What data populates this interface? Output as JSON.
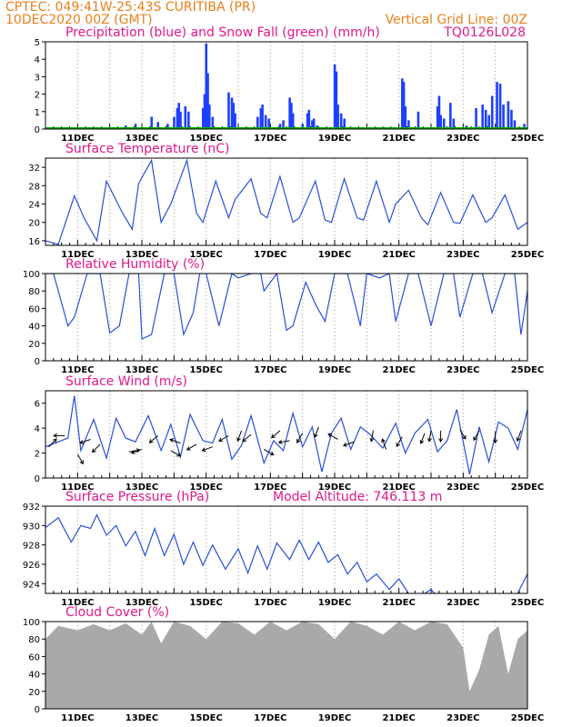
{
  "header": {
    "line1": "CPTEC:   049:41W-25:43S   CURITIBA (PR)",
    "line2": "10DEC2020 00Z (GMT)",
    "grid_note": "Vertical Grid Line: 00Z",
    "run_code": "TQ0126L028"
  },
  "colors": {
    "header": "#e8801c",
    "title": "#e0198c",
    "precip": "#1f3fff",
    "snow": "#00b000",
    "line": "#2b4fd8",
    "wind_arrow": "#000000",
    "cloud": "#a9a9a9"
  },
  "x_tick_labels": [
    "11DEC",
    "13DEC",
    "15DEC",
    "17DEC",
    "19DEC",
    "21DEC",
    "23DEC",
    "25DEC"
  ],
  "chart_data": [
    {
      "type": "bar",
      "title": "Precipitation (blue) and Snow Fall (green) (mm/h)",
      "x_start": "10DEC2020 00Z",
      "x_end": "25DEC2020 00Z",
      "ylim": [
        0,
        5
      ],
      "yticks": [
        0,
        1,
        2,
        3,
        4,
        5
      ],
      "series": [
        {
          "name": "Precipitation",
          "color": "#1f3fff",
          "points": [
            [
              0.2,
              0.1
            ],
            [
              0.5,
              0.1
            ],
            [
              1.7,
              0.1
            ],
            [
              2.5,
              0.2
            ],
            [
              2.8,
              0.3
            ],
            [
              3.3,
              0.7
            ],
            [
              3.5,
              0.4
            ],
            [
              3.8,
              0.3
            ],
            [
              4.0,
              0.7
            ],
            [
              4.1,
              1.2
            ],
            [
              4.15,
              1.5
            ],
            [
              4.2,
              1.0
            ],
            [
              4.35,
              1.3
            ],
            [
              4.45,
              1.0
            ],
            [
              4.9,
              1.2
            ],
            [
              4.95,
              2.0
            ],
            [
              5.0,
              4.9
            ],
            [
              5.05,
              3.2
            ],
            [
              5.1,
              1.4
            ],
            [
              5.2,
              0.7
            ],
            [
              5.7,
              2.1
            ],
            [
              5.8,
              1.8
            ],
            [
              5.85,
              1.5
            ],
            [
              5.9,
              0.9
            ],
            [
              6.6,
              0.7
            ],
            [
              6.7,
              1.2
            ],
            [
              6.75,
              1.4
            ],
            [
              6.85,
              0.8
            ],
            [
              6.95,
              0.6
            ],
            [
              7.3,
              0.3
            ],
            [
              7.4,
              0.5
            ],
            [
              7.6,
              1.8
            ],
            [
              7.65,
              1.5
            ],
            [
              7.7,
              0.9
            ],
            [
              8.0,
              0.3
            ],
            [
              8.15,
              0.9
            ],
            [
              8.2,
              1.1
            ],
            [
              8.3,
              0.5
            ],
            [
              8.35,
              0.6
            ],
            [
              8.45,
              0.2
            ],
            [
              9.0,
              3.7
            ],
            [
              9.05,
              3.3
            ],
            [
              9.1,
              1.4
            ],
            [
              9.2,
              0.9
            ],
            [
              9.3,
              0.6
            ],
            [
              11.1,
              2.9
            ],
            [
              11.15,
              2.7
            ],
            [
              11.2,
              1.3
            ],
            [
              11.3,
              0.5
            ],
            [
              11.6,
              1.0
            ],
            [
              12.2,
              1.3
            ],
            [
              12.25,
              1.9
            ],
            [
              12.3,
              0.8
            ],
            [
              12.4,
              0.6
            ],
            [
              12.6,
              1.5
            ],
            [
              12.7,
              0.6
            ],
            [
              13.1,
              0.2
            ],
            [
              13.4,
              1.2
            ],
            [
              13.6,
              1.4
            ],
            [
              13.7,
              1.1
            ],
            [
              13.8,
              0.8
            ],
            [
              13.9,
              1.9
            ],
            [
              14.05,
              2.7
            ],
            [
              14.15,
              2.6
            ],
            [
              14.25,
              1.4
            ],
            [
              14.4,
              1.6
            ],
            [
              14.5,
              1.1
            ],
            [
              14.6,
              0.5
            ],
            [
              14.9,
              0.3
            ],
            [
              15.6,
              1.5
            ],
            [
              15.65,
              2.3
            ],
            [
              15.7,
              1.8
            ],
            [
              15.8,
              1.2
            ],
            [
              15.9,
              0.5
            ],
            [
              16.2,
              3.3
            ],
            [
              16.3,
              1.2
            ],
            [
              16.4,
              0.8
            ],
            [
              16.6,
              0.3
            ],
            [
              16.9,
              1.2
            ],
            [
              17.0,
              1.0
            ],
            [
              17.15,
              0.5
            ],
            [
              17.3,
              0.7
            ],
            [
              17.4,
              1.1
            ],
            [
              17.5,
              1.5
            ],
            [
              17.6,
              0.9
            ],
            [
              17.8,
              0.3
            ],
            [
              17.95,
              0.9
            ],
            [
              18.0,
              1.0
            ]
          ]
        },
        {
          "name": "Snow Fall",
          "color": "#00b000",
          "points": [
            [
              0,
              0
            ],
            [
              15,
              0
            ]
          ]
        }
      ]
    },
    {
      "type": "line",
      "title": "Surface Temperature (nC)",
      "ylim": [
        15,
        34
      ],
      "yticks": [
        16,
        20,
        24,
        28,
        32
      ],
      "color": "#2b4fd8",
      "x": [
        0,
        0.4,
        0.9,
        1.2,
        1.6,
        1.9,
        2.4,
        2.7,
        2.9,
        3.3,
        3.6,
        3.9,
        4.4,
        4.7,
        4.9,
        5.3,
        5.7,
        5.9,
        6.4,
        6.7,
        6.9,
        7.3,
        7.7,
        7.9,
        8.4,
        8.7,
        8.9,
        9.3,
        9.7,
        9.9,
        10.3,
        10.7,
        10.9,
        11.3,
        11.7,
        11.9,
        12.3,
        12.7,
        12.9,
        13.3,
        13.7,
        13.9,
        14.3,
        14.7,
        15
      ],
      "y": [
        16,
        15.2,
        25.8,
        21,
        16,
        29,
        22,
        18.5,
        28.5,
        33.5,
        20,
        24,
        33.5,
        22,
        20,
        29,
        21,
        25,
        29.5,
        22,
        21,
        30,
        20,
        21,
        29,
        20.5,
        20,
        29.5,
        21,
        20.5,
        29,
        20,
        24,
        27,
        21,
        19.5,
        26.5,
        20,
        19.8,
        26,
        20,
        21,
        26,
        18.5,
        20
      ]
    },
    {
      "type": "line",
      "title": "Relative Humidity (%)",
      "ylim": [
        0,
        100
      ],
      "yticks": [
        0,
        20,
        40,
        60,
        80,
        100
      ],
      "color": "#2b4fd8",
      "x": [
        0,
        0.25,
        0.7,
        0.9,
        1.3,
        1.7,
        2.0,
        2.3,
        2.6,
        2.9,
        3.0,
        3.3,
        3.7,
        4.0,
        4.3,
        4.6,
        4.8,
        5.0,
        5.4,
        5.8,
        6.0,
        6.4,
        6.7,
        6.8,
        7.2,
        7.5,
        7.7,
        8.1,
        8.4,
        8.7,
        9.0,
        9.4,
        9.8,
        10.0,
        10.4,
        10.7,
        10.9,
        11.3,
        11.6,
        12.0,
        12.4,
        12.7,
        12.9,
        13.3,
        13.6,
        13.9,
        14.3,
        14.6,
        14.8,
        15
      ],
      "y": [
        100,
        100,
        40,
        50,
        100,
        100,
        32,
        40,
        100,
        100,
        25,
        30,
        100,
        100,
        30,
        55,
        100,
        100,
        40,
        100,
        95,
        100,
        100,
        80,
        100,
        35,
        40,
        90,
        65,
        45,
        100,
        100,
        40,
        100,
        95,
        100,
        45,
        100,
        100,
        40,
        100,
        100,
        50,
        100,
        100,
        55,
        100,
        100,
        30,
        80
      ]
    },
    {
      "type": "line",
      "title": "Surface Wind (m/s)",
      "ylim": [
        0,
        7
      ],
      "yticks": [
        0,
        2,
        4,
        6
      ],
      "color": "#2b4fd8",
      "x": [
        0,
        0.3,
        0.7,
        0.9,
        1.1,
        1.5,
        1.9,
        2.2,
        2.5,
        2.8,
        3.2,
        3.6,
        3.9,
        4.2,
        4.5,
        4.9,
        5.2,
        5.5,
        5.8,
        6.1,
        6.4,
        6.8,
        7.1,
        7.4,
        7.7,
        8.0,
        8.3,
        8.6,
        8.9,
        9.2,
        9.5,
        9.8,
        10.1,
        10.5,
        10.9,
        11.2,
        11.5,
        11.9,
        12.2,
        12.5,
        12.8,
        13.2,
        13.5,
        13.8,
        14.1,
        14.4,
        14.7,
        15
      ],
      "y": [
        2.5,
        2.8,
        3.2,
        6.6,
        2.2,
        4.7,
        1.6,
        4.8,
        3.2,
        2.9,
        5.0,
        2.2,
        4.3,
        1.7,
        5.1,
        3.0,
        2.8,
        4.7,
        1.5,
        2.6,
        5.0,
        1.2,
        3.0,
        2.2,
        5.2,
        2.5,
        4.1,
        0.5,
        3.6,
        4.8,
        2.3,
        4.1,
        3.5,
        2.4,
        4.4,
        2.0,
        3.6,
        4.7,
        2.1,
        3.0,
        5.5,
        0.3,
        4.1,
        1.3,
        4.5,
        4.0,
        2.3,
        5.5
      ]
    },
    {
      "type": "line",
      "title": "Surface Pressure (hPa)",
      "annotation": "Model Altitude: 746.113 m",
      "ylim": [
        923,
        932
      ],
      "yticks": [
        924,
        926,
        928,
        930,
        932
      ],
      "color": "#2b4fd8",
      "x": [
        0,
        0.4,
        0.8,
        1.1,
        1.4,
        1.6,
        1.9,
        2.2,
        2.5,
        2.8,
        3.1,
        3.4,
        3.7,
        4.0,
        4.3,
        4.6,
        4.9,
        5.2,
        5.6,
        6.0,
        6.3,
        6.6,
        6.9,
        7.2,
        7.6,
        7.9,
        8.2,
        8.5,
        8.8,
        9.1,
        9.4,
        9.7,
        10.0,
        10.3,
        10.7,
        11.0,
        11.3,
        11.6,
        12.0,
        12.3,
        12.6,
        13.0,
        13.4,
        13.8,
        14.2,
        14.6,
        15
      ],
      "y": [
        929.8,
        930.8,
        928.3,
        930.0,
        929.7,
        931.1,
        929.0,
        930.0,
        927.9,
        929.4,
        926.9,
        929.7,
        926.9,
        929.1,
        926.0,
        928.3,
        925.9,
        928.0,
        925.5,
        927.6,
        925.1,
        927.9,
        925.5,
        928.2,
        926.5,
        928.5,
        926.5,
        928.3,
        926.2,
        927.0,
        925.0,
        926.2,
        924.2,
        925.0,
        923.4,
        924.5,
        923.0,
        922.6,
        923.4,
        922.3,
        921.8,
        922.8,
        921.5,
        922.6,
        921.8,
        922.4,
        925.0
      ]
    },
    {
      "type": "area",
      "title": "Cloud Cover (%)",
      "ylim": [
        0,
        100
      ],
      "yticks": [
        0,
        20,
        40,
        60,
        80,
        100
      ],
      "color": "#a9a9a9",
      "x": [
        0,
        0.4,
        1.0,
        1.5,
        2.0,
        2.5,
        3.0,
        3.3,
        3.6,
        4.0,
        4.5,
        5.0,
        5.5,
        6.0,
        6.5,
        7.0,
        7.5,
        8.0,
        8.5,
        9.0,
        9.5,
        10.0,
        10.5,
        11.0,
        11.5,
        12.0,
        12.5,
        13.0,
        13.2,
        13.5,
        13.8,
        14.1,
        14.4,
        14.7,
        15
      ],
      "y": [
        80,
        95,
        90,
        97,
        90,
        98,
        85,
        100,
        75,
        100,
        95,
        80,
        100,
        98,
        85,
        100,
        90,
        100,
        97,
        80,
        100,
        95,
        85,
        100,
        90,
        100,
        97,
        70,
        20,
        45,
        85,
        95,
        40,
        80,
        90
      ]
    },
    {
      "type": "scatter",
      "title": "Surface Wind direction",
      "points": [
        [
          0.1,
          2.5,
          45
        ],
        [
          0.6,
          3.4,
          180
        ],
        [
          1.0,
          1.9,
          300
        ],
        [
          1.4,
          3.1,
          200
        ],
        [
          1.7,
          2.7,
          225
        ],
        [
          2.6,
          2.1,
          10
        ],
        [
          3.0,
          2.3,
          200
        ],
        [
          3.5,
          3.4,
          220
        ],
        [
          3.9,
          2.2,
          330
        ],
        [
          4.2,
          2.8,
          160
        ],
        [
          4.7,
          2.7,
          210
        ],
        [
          5.2,
          2.5,
          200
        ],
        [
          5.7,
          3.4,
          210
        ],
        [
          6.1,
          3.8,
          250
        ],
        [
          6.4,
          3.5,
          220
        ],
        [
          6.8,
          2.3,
          330
        ],
        [
          7.3,
          3.8,
          220
        ],
        [
          7.6,
          3.0,
          190
        ],
        [
          8.0,
          3.6,
          240
        ],
        [
          8.5,
          4.1,
          250
        ],
        [
          9.1,
          3.1,
          150
        ],
        [
          9.6,
          2.9,
          200
        ],
        [
          10.2,
          3.8,
          260
        ],
        [
          10.6,
          2.3,
          110
        ],
        [
          11.1,
          3.3,
          240
        ],
        [
          11.8,
          3.6,
          250
        ],
        [
          12.0,
          3.8,
          260
        ],
        [
          12.3,
          3.8,
          270
        ],
        [
          12.9,
          3.9,
          300
        ],
        [
          13.5,
          3.8,
          240
        ],
        [
          14.0,
          3.7,
          270
        ],
        [
          14.8,
          3.8,
          250
        ]
      ]
    }
  ]
}
